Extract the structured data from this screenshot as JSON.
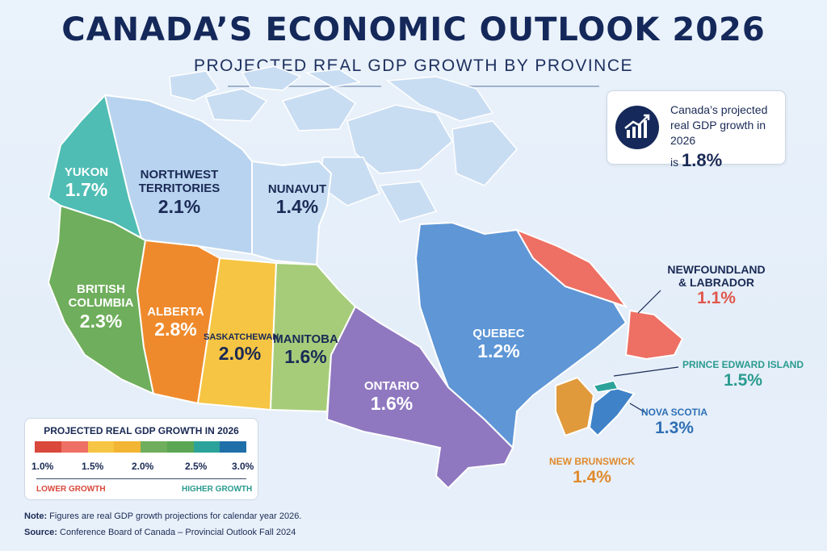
{
  "header": {
    "title": "CANADA’S ECONOMIC OUTLOOK 2026",
    "subtitle": "PROJECTED REAL GDP GROWTH BY PROVINCE"
  },
  "callout": {
    "line1": "Canada’s projected",
    "line2": "real GDP growth in 2026",
    "prefix": "is",
    "value": "1.8%"
  },
  "regions": {
    "yukon": {
      "name": "YUKON",
      "value": "1.7%",
      "color": "#4fbdb4"
    },
    "nwt": {
      "name1": "NORTHWEST",
      "name2": "TERRITORIES",
      "value": "2.1%",
      "color": "#b8d3ef"
    },
    "nunavut": {
      "name": "NUNAVUT",
      "value": "1.4%",
      "color": "#c6dcf2"
    },
    "bc": {
      "name1": "BRITISH",
      "name2": "COLUMBIA",
      "value": "2.3%",
      "color": "#6fae5c"
    },
    "alberta": {
      "name": "ALBERTA",
      "value": "2.8%",
      "color": "#ef8a2c"
    },
    "saskatchewan": {
      "name": "SASKATCHEWAN",
      "value": "2.0%",
      "color": "#f6c543"
    },
    "manitoba": {
      "name": "MANITOBA",
      "value": "1.6%",
      "color": "#a6cc7a"
    },
    "ontario": {
      "name": "ONTARIO",
      "value": "1.6%",
      "color": "#8f78c0"
    },
    "quebec": {
      "name": "QUEBEC",
      "value": "1.2%",
      "color": "#5e96d6"
    },
    "newfoundland": {
      "name1": "NEWFOUNDLAND",
      "name2": "& LABRADOR",
      "value": "1.1%",
      "color": "#ee6f63"
    },
    "pei": {
      "name": "PRINCE EDWARD ISLAND",
      "value": "1.5%",
      "color": "#2ba39a"
    },
    "nova_scotia": {
      "name": "NOVA SCOTIA",
      "value": "1.3%",
      "color": "#3f82c8"
    },
    "new_brunswick": {
      "name": "NEW BRUNSWICK",
      "value": "1.4%",
      "color": "#e09a3c"
    }
  },
  "legend": {
    "title": "PROJECTED REAL GDP GROWTH IN 2026",
    "ticks": [
      "1.0%",
      "1.5%",
      "2.0%",
      "2.5%",
      "3.0%"
    ],
    "low_label": "LOWER GROWTH",
    "high_label": "HIGHER GROWTH",
    "colors": [
      "#d9483b",
      "#ee6f63",
      "#f6c543",
      "#f3b534",
      "#6fae5c",
      "#5aa654",
      "#2ba39a",
      "#1f6fa8"
    ]
  },
  "footer": {
    "note_label": "Note:",
    "note_text": " Figures are real GDP growth projections for calendar year 2026.",
    "source_label": "Source:",
    "source_text": " Conference Board of Canada – Provincial Outlook Fall 2024"
  }
}
